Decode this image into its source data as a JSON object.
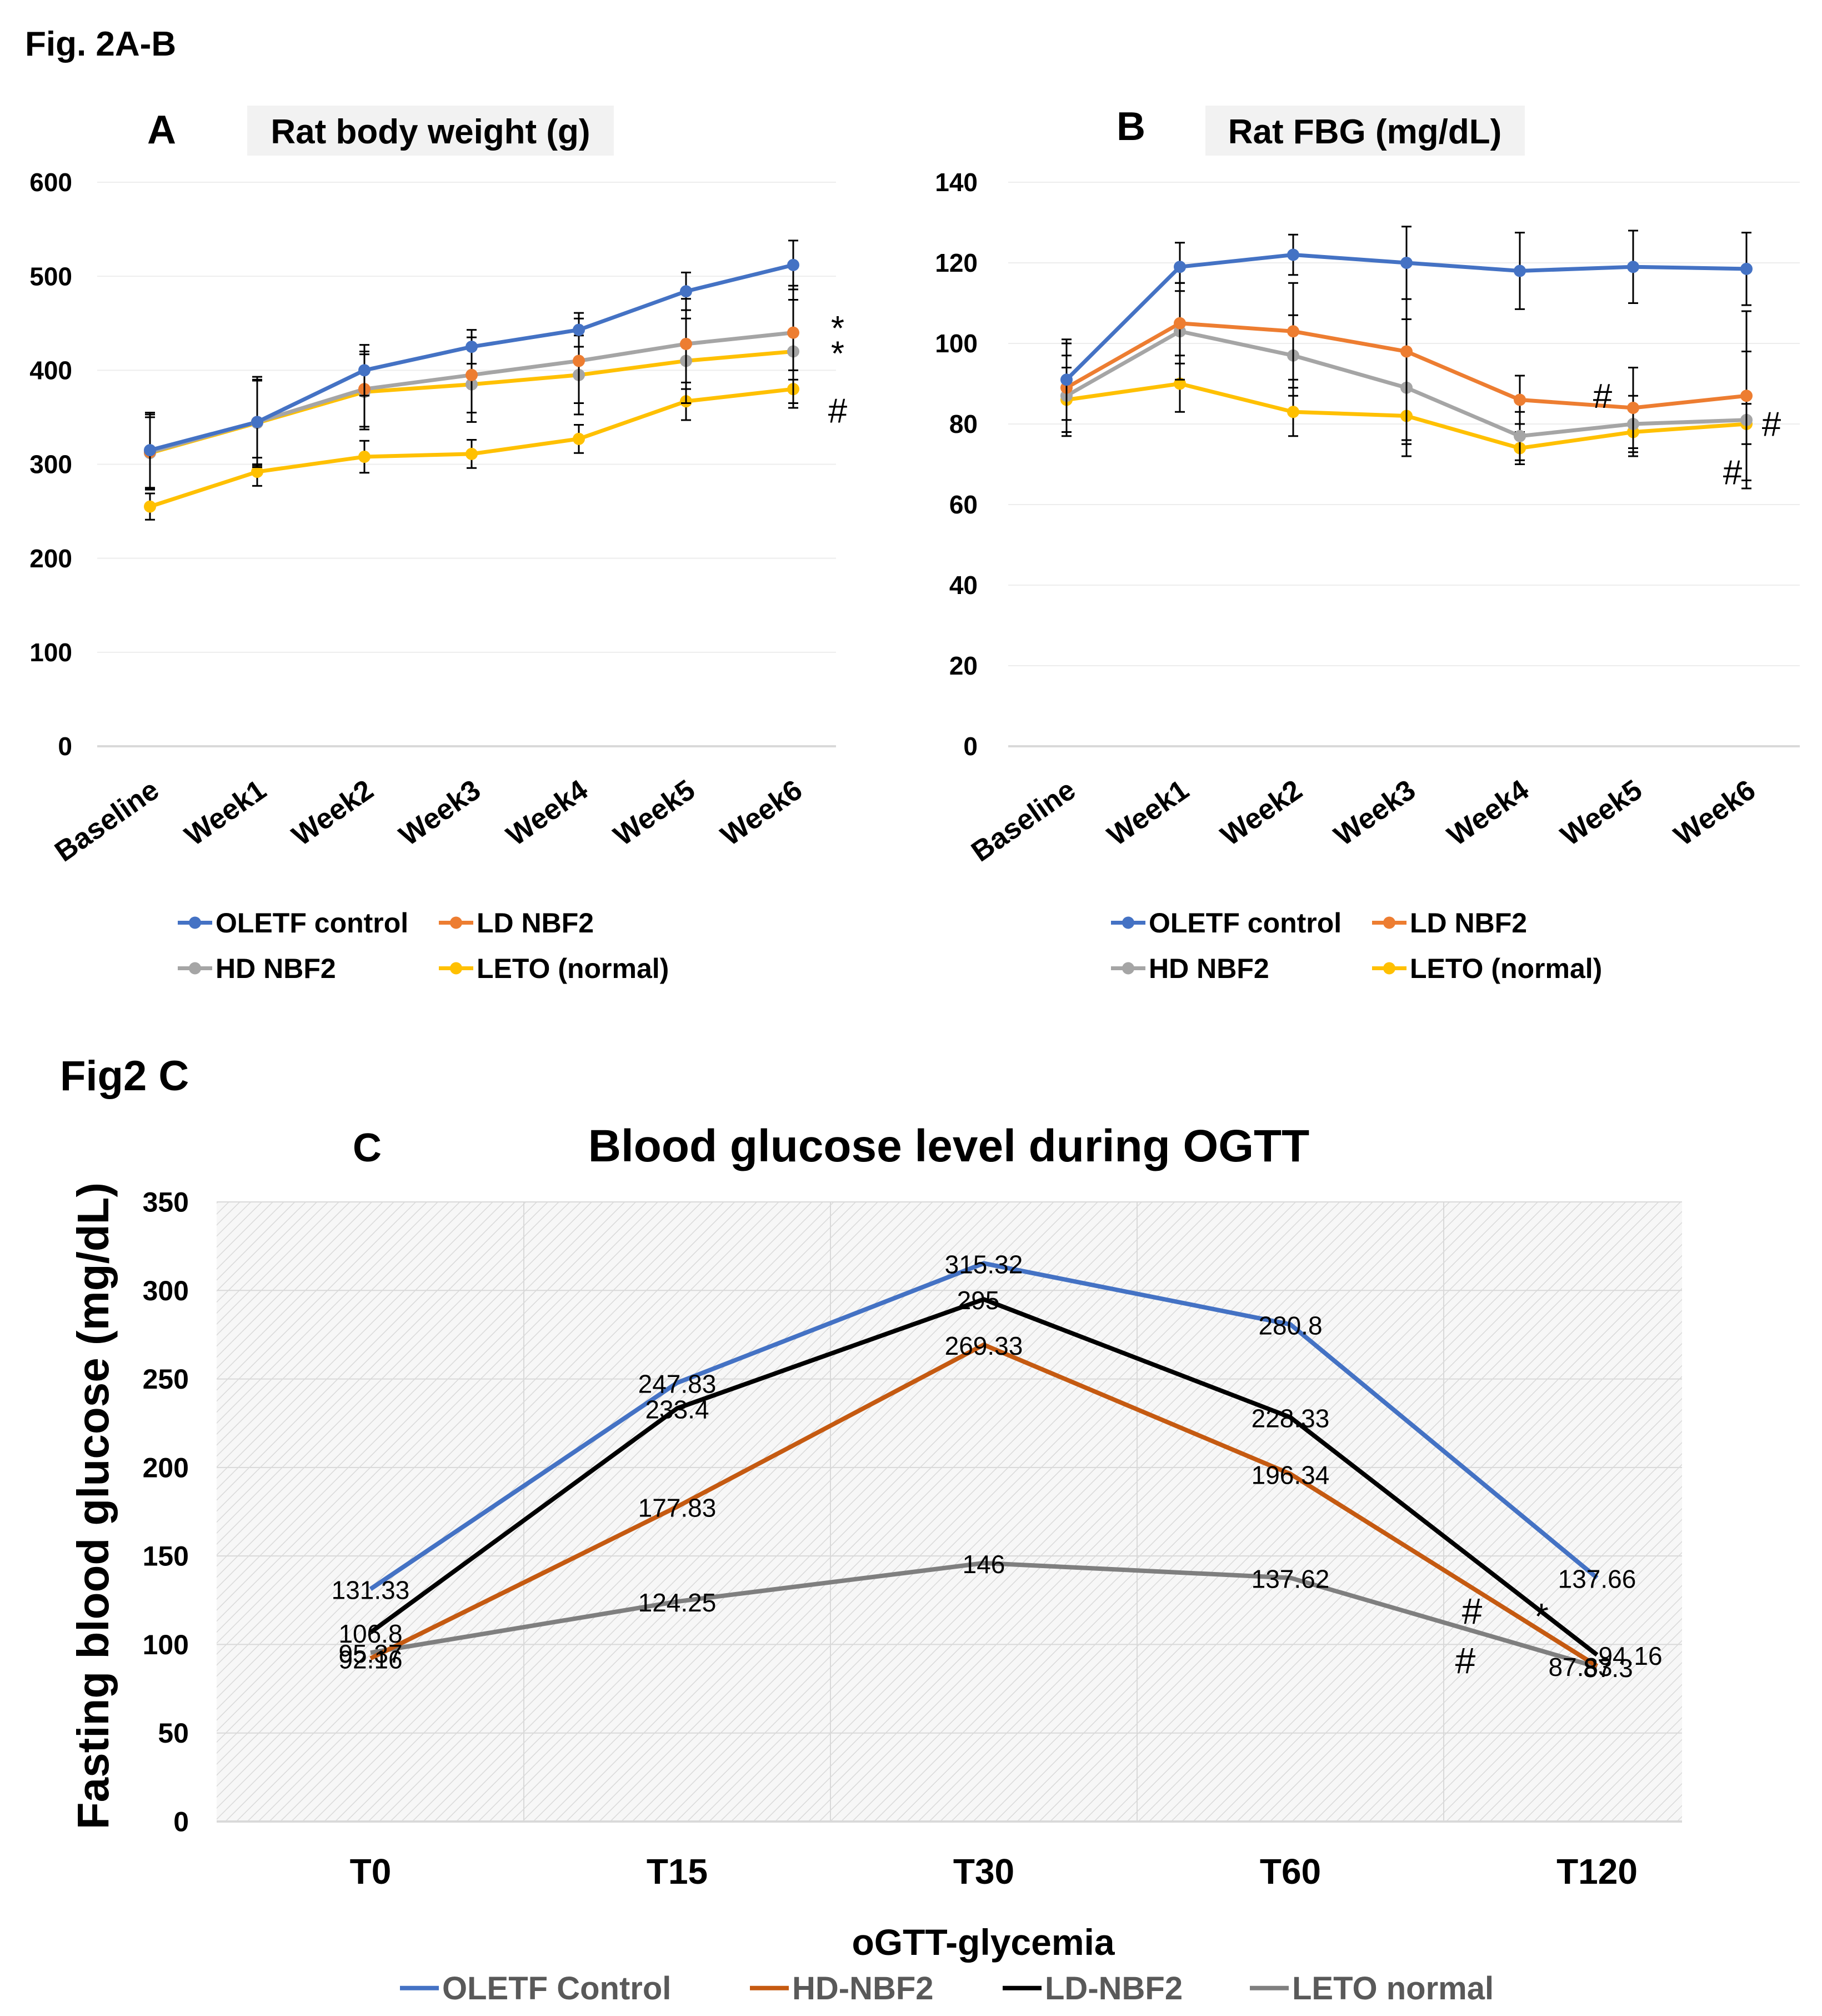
{
  "figure": {
    "heading_ab": "Fig. 2A-B",
    "heading_c": "Fig2 C"
  },
  "chart_data": [
    {
      "id": "A",
      "type": "line",
      "panel_letter": "A",
      "title": "Rat body weight (g)",
      "categories": [
        "Baseline",
        "Week1",
        "Week2",
        "Week3",
        "Week4",
        "Week5",
        "Week6"
      ],
      "ylim": [
        0,
        600
      ],
      "yticks": [
        0,
        100,
        200,
        300,
        400,
        500,
        600
      ],
      "grid": true,
      "legend_position": "bottom",
      "series": [
        {
          "name": "OLETF control",
          "color": "#4472C4",
          "values": [
            315,
            345,
            400,
            425,
            443,
            484,
            512
          ],
          "errors": [
            40,
            48,
            27,
            18,
            18,
            20,
            26
          ]
        },
        {
          "name": "LD NBF2",
          "color": "#ED7D31",
          "values": [
            313,
            345,
            380,
            395,
            410,
            428,
            440
          ],
          "errors": [
            40,
            45,
            40,
            40,
            45,
            48,
            50
          ]
        },
        {
          "name": "HD NBF2",
          "color": "#A5A5A5",
          "values": [
            312,
            344,
            377,
            385,
            395,
            410,
            420
          ],
          "errors": [
            38,
            45,
            40,
            40,
            42,
            45,
            55
          ]
        },
        {
          "name": "LETO (normal)",
          "color": "#FFC000",
          "values": [
            255,
            292,
            308,
            311,
            327,
            367,
            380
          ],
          "errors": [
            14,
            15,
            17,
            15,
            15,
            20,
            20
          ]
        }
      ],
      "line_colors": [
        "#000000",
        "#A5A5A5",
        "#FFC000",
        "#FFC000"
      ],
      "annotations": [
        {
          "label": "*",
          "category": "Week6",
          "y": 445
        },
        {
          "label": "*",
          "category": "Week6",
          "y": 418
        },
        {
          "label": "#",
          "category": "Week6",
          "y": 362
        }
      ]
    },
    {
      "id": "B",
      "type": "line",
      "panel_letter": "B",
      "title": "Rat FBG (mg/dL)",
      "categories": [
        "Baseline",
        "Week1",
        "Week2",
        "Week3",
        "Week4",
        "Week5",
        "Week6"
      ],
      "ylim": [
        0,
        140
      ],
      "yticks": [
        0,
        20,
        40,
        60,
        80,
        100,
        120,
        140
      ],
      "grid": true,
      "legend_position": "bottom",
      "series": [
        {
          "name": "OLETF control",
          "color": "#4472C4",
          "values": [
            91,
            119,
            122,
            120,
            118,
            119,
            118.5
          ],
          "errors": [
            10,
            6,
            5,
            9,
            9.5,
            9,
            9
          ]
        },
        {
          "name": "LD NBF2",
          "color": "#ED7D31",
          "values": [
            89,
            105,
            103,
            98,
            86,
            84,
            87
          ],
          "errors": [
            11,
            10,
            12,
            22,
            6,
            10,
            21
          ]
        },
        {
          "name": "HD NBF2",
          "color": "#A5A5A5",
          "values": [
            87,
            103,
            97,
            89,
            77,
            80,
            81
          ],
          "errors": [
            10,
            12,
            10,
            17,
            6,
            7,
            17
          ]
        },
        {
          "name": "LETO (normal)",
          "color": "#FFC000",
          "values": [
            86,
            90,
            83,
            82,
            74,
            78,
            80
          ],
          "errors": [
            8,
            7,
            6,
            7,
            4,
            6,
            5
          ]
        }
      ],
      "annotations": [
        {
          "label": "#",
          "category": "Week5",
          "y": 87
        },
        {
          "label": "#",
          "category": "Week6",
          "y": 80
        },
        {
          "label": "#",
          "category": "Week6",
          "y": 68
        }
      ]
    },
    {
      "id": "C",
      "type": "line",
      "panel_letter": "C",
      "title": "Blood glucose level during OGTT",
      "xlabel": "oGTT-glycemia",
      "ylabel": "Fasting blood glucose (mg/dL)",
      "categories": [
        "T0",
        "T15",
        "T30",
        "T60",
        "T120"
      ],
      "ylim": [
        0,
        350
      ],
      "yticks": [
        0,
        50,
        100,
        150,
        200,
        250,
        300,
        350
      ],
      "grid": true,
      "legend_position": "bottom",
      "series": [
        {
          "name": "OLETF Control",
          "color": "#4472C4",
          "values": [
            131.33,
            247.83,
            315.32,
            280.8,
            137.66
          ]
        },
        {
          "name": "HD-NBF2",
          "color": "#C55A11",
          "values": [
            92.16,
            177.83,
            269.33,
            196.34,
            87.83
          ]
        },
        {
          "name": "LD-NBF2",
          "color": "#000000",
          "values": [
            106.8,
            233.4,
            295,
            228.33,
            94.16
          ]
        },
        {
          "name": "LETO normal",
          "color": "#7F7F7F",
          "values": [
            95.37,
            124.25,
            146,
            137.62,
            87.3
          ]
        }
      ],
      "data_labels": [
        {
          "text": "131.33",
          "category": "T0",
          "y": 131.33
        },
        {
          "text": "106.8",
          "category": "T0",
          "y": 106.8
        },
        {
          "text": "95.37",
          "category": "T0",
          "y": 95.37
        },
        {
          "text": "92.16",
          "category": "T0",
          "y": 92.16
        },
        {
          "text": "247.83",
          "category": "T15",
          "y": 247.83
        },
        {
          "text": "233.4",
          "category": "T15",
          "y": 233.4
        },
        {
          "text": "177.83",
          "category": "T15",
          "y": 177.83
        },
        {
          "text": "124.25",
          "category": "T15",
          "y": 124.25
        },
        {
          "text": "315.32",
          "category": "T30",
          "y": 315.32
        },
        {
          "text": "295",
          "category": "T30",
          "y": 295
        },
        {
          "text": "269.33",
          "category": "T30",
          "y": 269.33
        },
        {
          "text": "146",
          "category": "T30",
          "y": 146
        },
        {
          "text": "280.8",
          "category": "T60",
          "y": 280.8
        },
        {
          "text": "228.33",
          "category": "T60",
          "y": 228.33
        },
        {
          "text": "196.34",
          "category": "T60",
          "y": 196.34
        },
        {
          "text": "137.62",
          "category": "T60",
          "y": 137.62
        },
        {
          "text": "137.66",
          "category": "T120",
          "y": 137.66
        },
        {
          "text": "94.16",
          "category": "T120",
          "y": 94.16
        },
        {
          "text": "87.83",
          "category": "T120",
          "y": 87.83
        },
        {
          "text": "87.3",
          "category": "T120",
          "y": 87.3
        }
      ],
      "annotations": [
        {
          "label": "#",
          "category": "T120",
          "y": 119
        },
        {
          "label": "*",
          "category": "T120",
          "y": 116
        },
        {
          "label": "#",
          "category": "T120",
          "y": 91
        }
      ]
    }
  ]
}
